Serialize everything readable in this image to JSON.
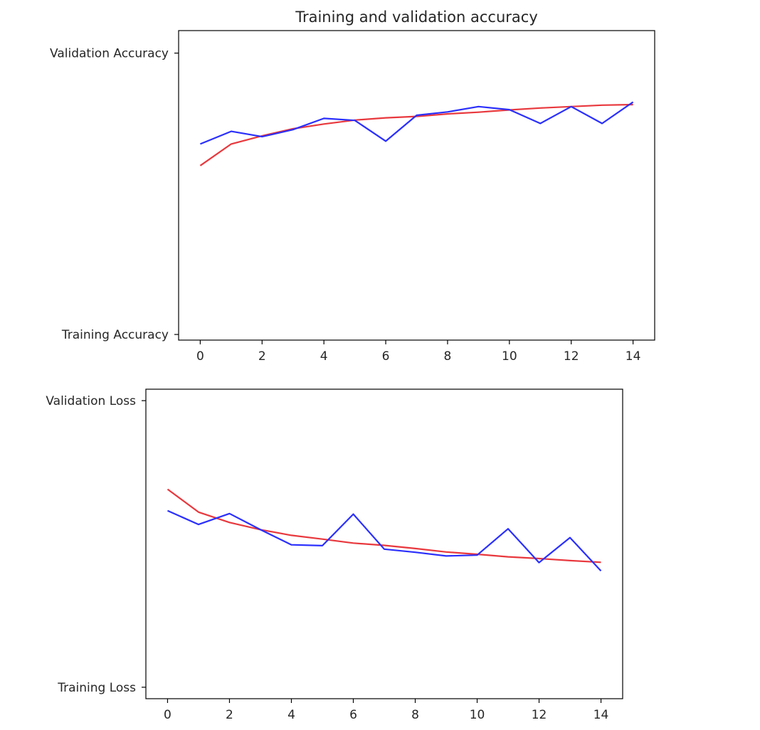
{
  "chart_data": [
    {
      "type": "line",
      "title": "Training and validation accuracy",
      "xlabel": "",
      "ylabel": "",
      "x_ticks": [
        0,
        2,
        4,
        6,
        8,
        10,
        12,
        14
      ],
      "y_tick_labels": [
        "Training Accuracy",
        "Validation Accuracy"
      ],
      "xlim": [
        -0.7,
        14.7
      ],
      "ylim": [
        -0.02,
        1.08
      ],
      "grid": false,
      "legend": "none",
      "x": [
        0,
        1,
        2,
        3,
        4,
        5,
        6,
        7,
        8,
        9,
        10,
        11,
        12,
        13,
        14
      ],
      "series": [
        {
          "color": "#e8383d",
          "values": [
            0.6,
            0.677,
            0.706,
            0.731,
            0.748,
            0.762,
            0.77,
            0.775,
            0.784,
            0.79,
            0.798,
            0.805,
            0.81,
            0.815,
            0.817
          ]
        },
        {
          "color": "#2a2fff",
          "values": [
            0.677,
            0.722,
            0.703,
            0.728,
            0.768,
            0.761,
            0.687,
            0.779,
            0.791,
            0.81,
            0.799,
            0.75,
            0.81,
            0.75,
            0.826
          ]
        }
      ]
    },
    {
      "type": "line",
      "title": "",
      "xlabel": "",
      "ylabel": "",
      "x_ticks": [
        0,
        2,
        4,
        6,
        8,
        10,
        12,
        14
      ],
      "y_tick_labels": [
        "Training Loss",
        "Validation Loss"
      ],
      "xlim": [
        -0.7,
        14.7
      ],
      "ylim": [
        -0.04,
        1.04
      ],
      "grid": false,
      "legend": "none",
      "x": [
        0,
        1,
        2,
        3,
        4,
        5,
        6,
        7,
        8,
        9,
        10,
        11,
        12,
        13,
        14
      ],
      "series": [
        {
          "color": "#e8383d",
          "values": [
            0.691,
            0.611,
            0.575,
            0.55,
            0.53,
            0.517,
            0.503,
            0.495,
            0.484,
            0.472,
            0.464,
            0.455,
            0.449,
            0.442,
            0.436
          ]
        },
        {
          "color": "#2a2fff",
          "values": [
            0.616,
            0.568,
            0.606,
            0.55,
            0.497,
            0.494,
            0.604,
            0.482,
            0.471,
            0.458,
            0.461,
            0.553,
            0.435,
            0.522,
            0.406
          ]
        }
      ]
    }
  ]
}
